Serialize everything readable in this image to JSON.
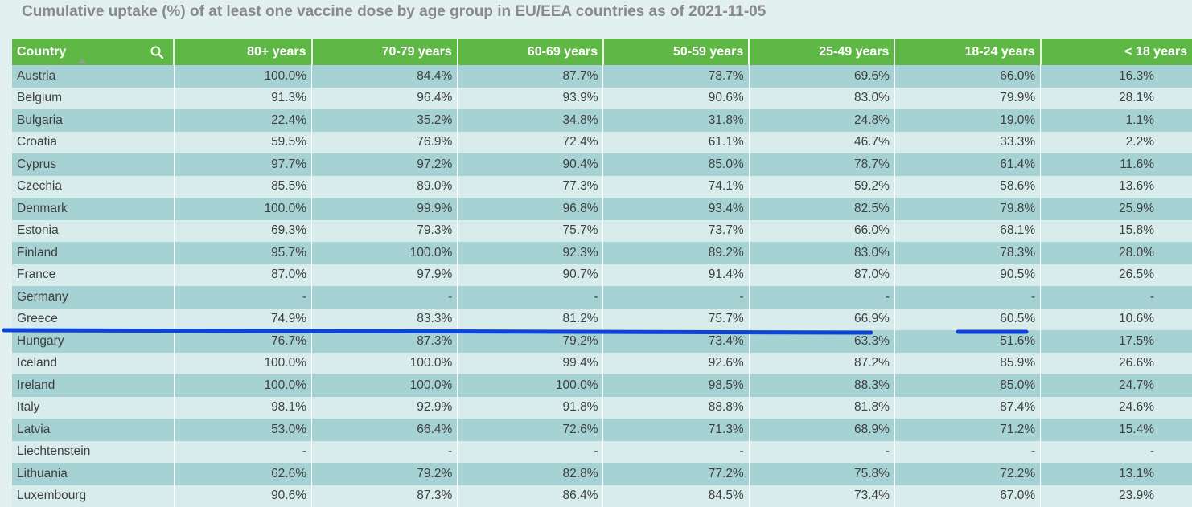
{
  "chart_data": {
    "type": "table",
    "title": "Cumulative uptake (%) of at least one vaccine dose by age group in EU/EEA countries as of 2021-11-05",
    "columns": [
      "Country",
      "80+ years",
      "70-79 years",
      "60-69 years",
      "50-59 years",
      "25-49 years",
      "18-24 years",
      "< 18 years"
    ],
    "rows": [
      [
        "Austria",
        "100.0%",
        "84.4%",
        "87.7%",
        "78.7%",
        "69.6%",
        "66.0%",
        "16.3%"
      ],
      [
        "Belgium",
        "91.3%",
        "96.4%",
        "93.9%",
        "90.6%",
        "83.0%",
        "79.9%",
        "28.1%"
      ],
      [
        "Bulgaria",
        "22.4%",
        "35.2%",
        "34.8%",
        "31.8%",
        "24.8%",
        "19.0%",
        "1.1%"
      ],
      [
        "Croatia",
        "59.5%",
        "76.9%",
        "72.4%",
        "61.1%",
        "46.7%",
        "33.3%",
        "2.2%"
      ],
      [
        "Cyprus",
        "97.7%",
        "97.2%",
        "90.4%",
        "85.0%",
        "78.7%",
        "61.4%",
        "11.6%"
      ],
      [
        "Czechia",
        "85.5%",
        "89.0%",
        "77.3%",
        "74.1%",
        "59.2%",
        "58.6%",
        "13.6%"
      ],
      [
        "Denmark",
        "100.0%",
        "99.9%",
        "96.8%",
        "93.4%",
        "82.5%",
        "79.8%",
        "25.9%"
      ],
      [
        "Estonia",
        "69.3%",
        "79.3%",
        "75.7%",
        "73.7%",
        "66.0%",
        "68.1%",
        "15.8%"
      ],
      [
        "Finland",
        "95.7%",
        "100.0%",
        "92.3%",
        "89.2%",
        "83.0%",
        "78.3%",
        "28.0%"
      ],
      [
        "France",
        "87.0%",
        "97.9%",
        "90.7%",
        "91.4%",
        "87.0%",
        "90.5%",
        "26.5%"
      ],
      [
        "Germany",
        "-",
        "-",
        "-",
        "-",
        "-",
        "-",
        "-"
      ],
      [
        "Greece",
        "74.9%",
        "83.3%",
        "81.2%",
        "75.7%",
        "66.9%",
        "60.5%",
        "10.6%"
      ],
      [
        "Hungary",
        "76.7%",
        "87.3%",
        "79.2%",
        "73.4%",
        "63.3%",
        "51.6%",
        "17.5%"
      ],
      [
        "Iceland",
        "100.0%",
        "100.0%",
        "99.4%",
        "92.6%",
        "87.2%",
        "85.9%",
        "26.6%"
      ],
      [
        "Ireland",
        "100.0%",
        "100.0%",
        "100.0%",
        "98.5%",
        "88.3%",
        "85.0%",
        "24.7%"
      ],
      [
        "Italy",
        "98.1%",
        "92.9%",
        "91.8%",
        "88.8%",
        "81.8%",
        "87.4%",
        "24.6%"
      ],
      [
        "Latvia",
        "53.0%",
        "66.4%",
        "72.6%",
        "71.3%",
        "68.9%",
        "71.2%",
        "15.4%"
      ],
      [
        "Liechtenstein",
        "-",
        "-",
        "-",
        "-",
        "-",
        "-",
        "-"
      ],
      [
        "Lithuania",
        "62.6%",
        "79.2%",
        "82.8%",
        "77.2%",
        "75.8%",
        "72.2%",
        "13.1%"
      ],
      [
        "Luxembourg",
        "90.6%",
        "87.3%",
        "86.4%",
        "84.5%",
        "73.4%",
        "67.0%",
        "23.9%"
      ]
    ],
    "sort_column": "Country",
    "sort_direction": "ascending"
  },
  "colors": {
    "header_bg": "#5fb845",
    "row_odd": "#a7d2d4",
    "row_even": "#d9ecec",
    "title_text": "#8a8a8a",
    "annotation_stroke": "#0a44d8"
  },
  "icons": {
    "search": "search-icon",
    "sort": "sort-ascending-icon"
  }
}
